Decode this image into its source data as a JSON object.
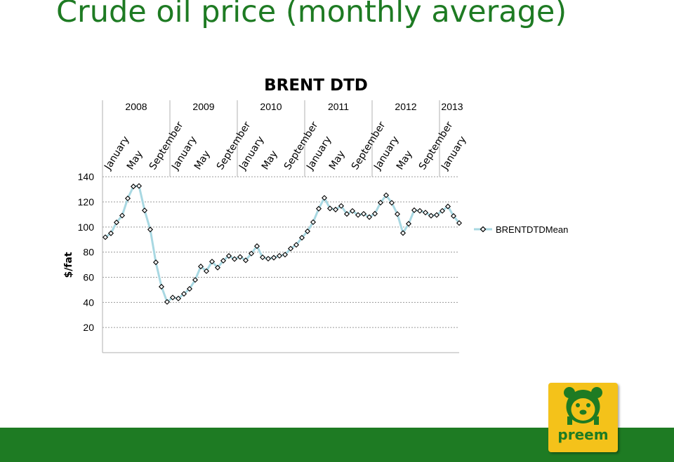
{
  "slide": {
    "title": "Crude oil price (monthly average)"
  },
  "chart_data": {
    "type": "line",
    "title": "BRENT DTD",
    "ylabel": "$/fat",
    "xlabel": "",
    "ylim": [
      0,
      150
    ],
    "yticks": [
      20,
      40,
      60,
      80,
      100,
      120,
      140
    ],
    "grid": "horizontal dashed",
    "legend": "right",
    "years": [
      "2008",
      "2009",
      "2010",
      "2011",
      "2012",
      "2013"
    ],
    "month_labels": [
      "January",
      "May",
      "September",
      "January",
      "May",
      "September",
      "January",
      "May",
      "September",
      "January",
      "May",
      "September",
      "January",
      "May",
      "September",
      "January"
    ],
    "series": [
      {
        "name": "BRENTDTDMean",
        "color": "#a8d8e2",
        "values": [
          91.9,
          95.0,
          103.7,
          109.1,
          122.8,
          132.3,
          132.7,
          113.2,
          98.0,
          71.9,
          52.5,
          40.4,
          43.9,
          43.1,
          46.8,
          50.8,
          57.9,
          68.6,
          64.9,
          72.5,
          67.7,
          73.2,
          77.0,
          74.5,
          76.2,
          73.5,
          78.9,
          84.8,
          75.9,
          74.8,
          75.6,
          77.1,
          78.0,
          82.8,
          85.8,
          91.5,
          96.6,
          103.9,
          114.6,
          123.2,
          114.8,
          113.9,
          116.8,
          110.4,
          112.8,
          109.6,
          110.5,
          107.9,
          110.6,
          119.4,
          125.3,
          119.3,
          110.3,
          95.2,
          102.6,
          113.4,
          112.9,
          111.5,
          109.0,
          109.6,
          112.9,
          116.4,
          108.8,
          103.2
        ]
      }
    ]
  },
  "footer": {
    "logo_text": "preem",
    "colors": {
      "brand_green": "#1e7b23",
      "logo_yellow": "#f4c21a"
    }
  }
}
